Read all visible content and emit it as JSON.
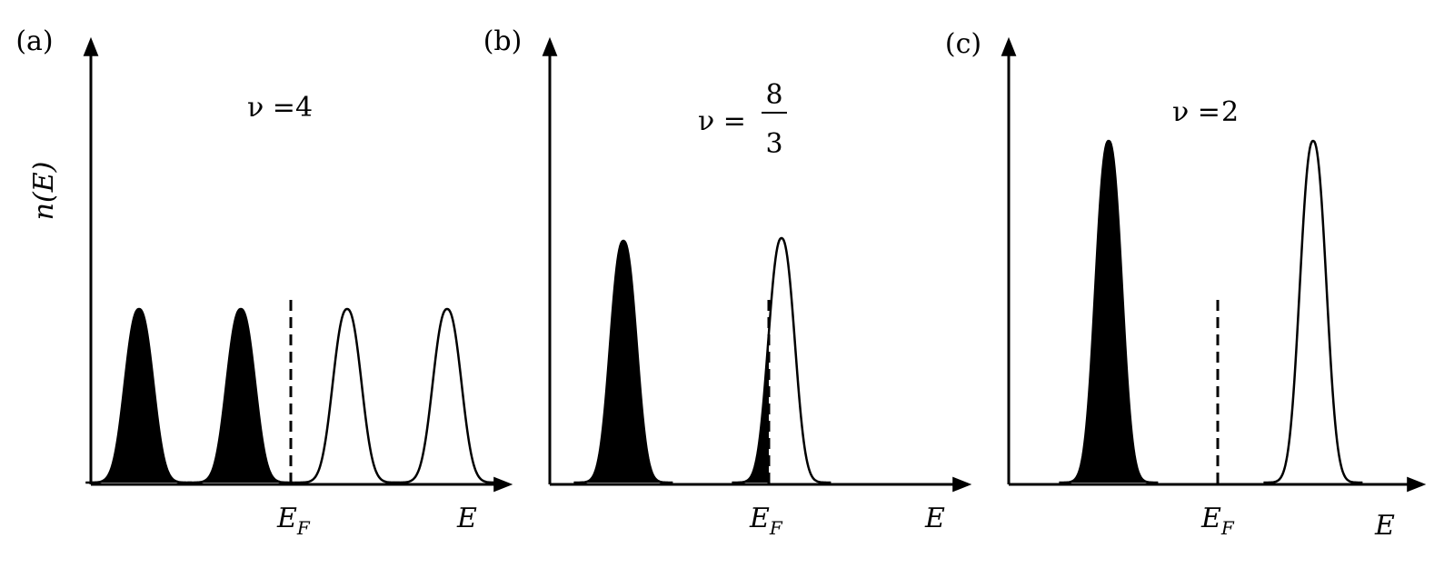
{
  "y_axis_label": "n(E)",
  "panels": [
    {
      "label": "(a)",
      "filling": {
        "lhs": "ν =",
        "rhs": "4"
      },
      "fermi_level": {
        "symbol": "E",
        "subscript": "F"
      },
      "x_axis_label": "E"
    },
    {
      "label": "(b)",
      "filling": {
        "lhs": "ν =",
        "numerator": "8",
        "denominator": "3"
      },
      "fermi_level": {
        "symbol": "E",
        "subscript": "F"
      },
      "x_axis_label": "E"
    },
    {
      "label": "(c)",
      "filling": {
        "lhs": "ν =",
        "rhs": "2"
      },
      "fermi_level": {
        "symbol": "E",
        "subscript": "F"
      },
      "x_axis_label": "E"
    }
  ]
}
